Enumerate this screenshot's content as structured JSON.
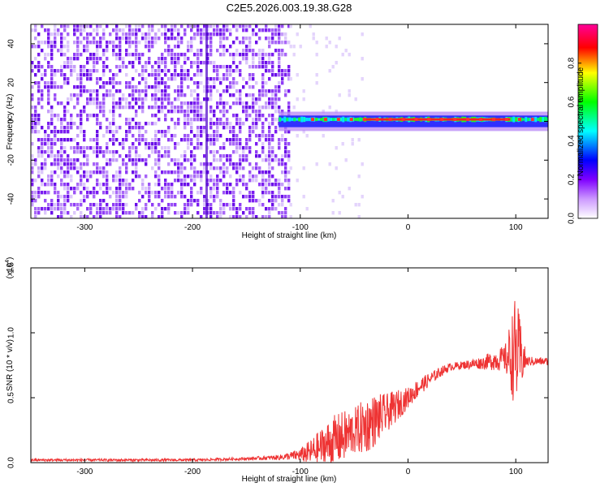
{
  "title": "C2E5.2026.003.19.38.G28",
  "chart_data": [
    {
      "type": "heatmap",
      "name": "spectrogram",
      "xlabel": "Height of straight line (km)",
      "ylabel": "Frequency (Hz)",
      "xlim": [
        -350,
        130
      ],
      "ylim": [
        -50,
        50
      ],
      "xticks": [
        -300,
        -200,
        -100,
        0,
        100
      ],
      "xtick_labels": [
        "-300",
        "-200",
        "-100",
        "0",
        "100"
      ],
      "yticks": [
        -40,
        -20,
        0,
        20,
        40
      ],
      "ytick_labels": [
        "-40",
        "-20",
        "0",
        "20",
        "40"
      ],
      "noise_region_km": [
        -350,
        -110
      ],
      "signal_region_km": [
        -120,
        130
      ],
      "signal_band_hz": [
        -3,
        3
      ],
      "signal_center_hz": 1,
      "colorbar": {
        "label": "Normalized spectral amplitude",
        "range": [
          0,
          1
        ],
        "ticks": [
          0.0,
          0.2,
          0.4,
          0.6,
          0.8
        ],
        "tick_labels": [
          "0.0",
          "0.2",
          "0.4",
          "0.6",
          "0.8"
        ],
        "colors": [
          "#ffffff",
          "#8a2be2",
          "#0000ff",
          "#00ffff",
          "#00ff00",
          "#ffff00",
          "#ff0000",
          "#ff00ff"
        ]
      }
    },
    {
      "type": "line",
      "name": "snr",
      "xlabel": "Height of straight line (km)",
      "ylabel": "SNR (10 * v/v)",
      "y_multiplier": "(x10",
      "y_exponent": "4",
      "y_multiplier_close": ")",
      "xlim": [
        -350,
        130
      ],
      "ylim": [
        0,
        1.5
      ],
      "xticks": [
        -300,
        -200,
        -100,
        0,
        100
      ],
      "xtick_labels": [
        "-300",
        "-200",
        "-100",
        "0",
        "100"
      ],
      "yticks": [
        0.0,
        0.5,
        1.0,
        1.5
      ],
      "ytick_labels": [
        "0.0",
        "0.5",
        "1.0",
        "1.5"
      ],
      "color": "#ee3333",
      "x": [
        -350,
        -300,
        -250,
        -200,
        -150,
        -120,
        -110,
        -100,
        -90,
        -80,
        -70,
        -60,
        -50,
        -40,
        -30,
        -20,
        -10,
        0,
        10,
        20,
        30,
        40,
        50,
        60,
        70,
        80,
        90,
        100,
        110,
        120,
        130
      ],
      "y": [
        0.02,
        0.02,
        0.02,
        0.02,
        0.03,
        0.04,
        0.05,
        0.06,
        0.08,
        0.12,
        0.16,
        0.2,
        0.24,
        0.28,
        0.33,
        0.38,
        0.44,
        0.5,
        0.58,
        0.64,
        0.7,
        0.74,
        0.75,
        0.76,
        0.77,
        0.79,
        0.8,
        0.85,
        0.78,
        0.78,
        0.78
      ],
      "noise_amp": [
        0.01,
        0.01,
        0.01,
        0.01,
        0.01,
        0.02,
        0.03,
        0.05,
        0.1,
        0.15,
        0.2,
        0.2,
        0.18,
        0.22,
        0.2,
        0.15,
        0.12,
        0.08,
        0.07,
        0.05,
        0.04,
        0.03,
        0.03,
        0.04,
        0.05,
        0.08,
        0.1,
        0.45,
        0.04,
        0.03,
        0.03
      ]
    }
  ]
}
